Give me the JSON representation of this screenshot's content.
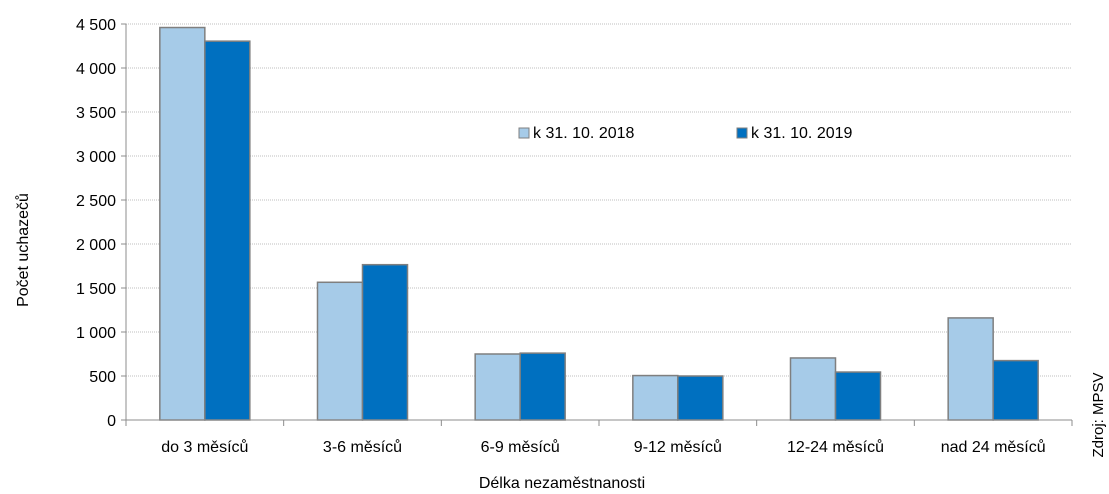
{
  "chart_data": {
    "type": "bar",
    "xlabel": "Délka nezaměstnanosti",
    "ylabel": "Počet uchazečů",
    "categories": [
      "do 3 měsíců",
      "3-6 měsíců",
      "6-9 měsíců",
      "9-12 měsíců",
      "12-24 měsíců",
      "nad 24 měsíců"
    ],
    "series": [
      {
        "name": "k 31. 10. 2018",
        "color": "#a6cbe8",
        "values": [
          4460,
          1565,
          750,
          505,
          705,
          1160
        ]
      },
      {
        "name": "k 31. 10. 2019",
        "color": "#0070c0",
        "values": [
          4305,
          1765,
          760,
          500,
          545,
          675
        ]
      }
    ],
    "ylim": [
      0,
      4500
    ],
    "yticks": [
      0,
      500,
      1000,
      1500,
      2000,
      2500,
      3000,
      3500,
      4000,
      4500
    ],
    "ytick_labels": [
      "0",
      "500",
      "1 000",
      "1 500",
      "2 000",
      "2 500",
      "3 000",
      "3 500",
      "4 000",
      "4 500"
    ],
    "grid": true,
    "legend_position": "top-right, inside plot",
    "source_note": "Zdroj: MPSV"
  }
}
